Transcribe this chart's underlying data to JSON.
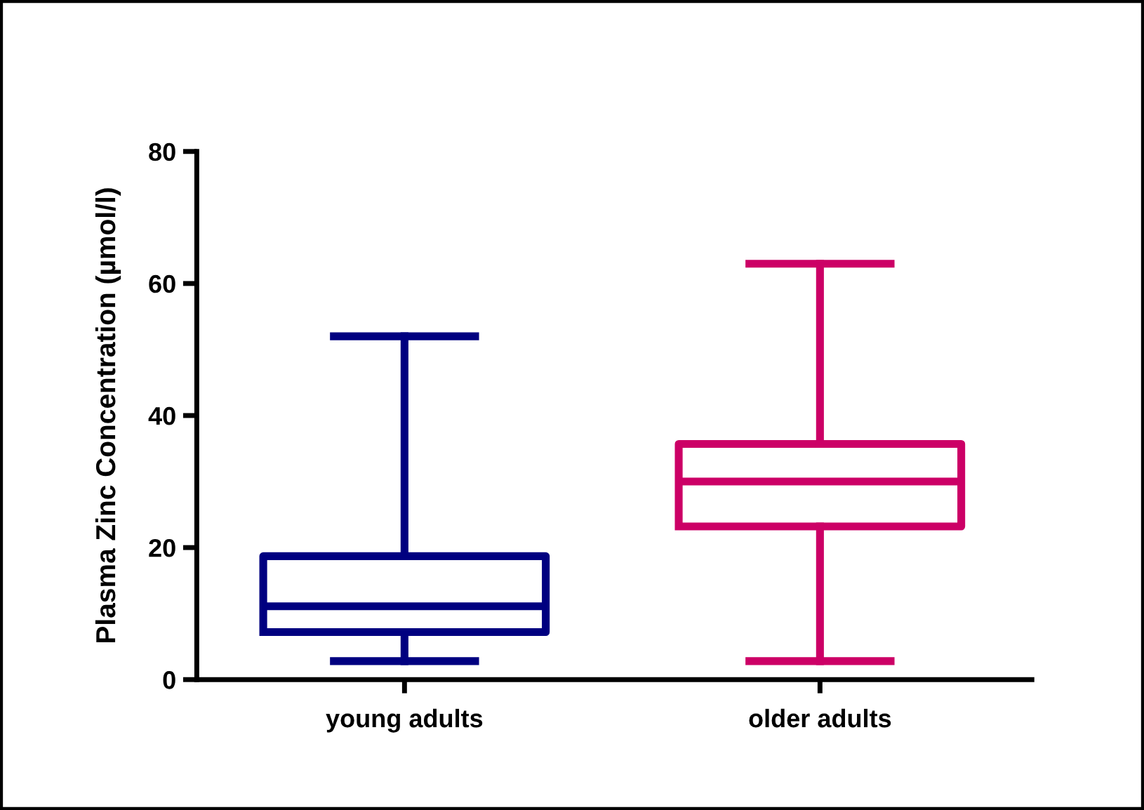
{
  "chart_data": {
    "type": "box",
    "ylabel": "Plasma Zinc Concentration (µmol/l)",
    "categories": [
      "young adults",
      "older adults"
    ],
    "colors": [
      "#000080",
      "#cc0066"
    ],
    "boxes": [
      {
        "low": 2.8,
        "q1": 7.2,
        "median": 11.1,
        "q3": 18.7,
        "high": 52
      },
      {
        "low": 2.8,
        "q1": 23.2,
        "median": 30,
        "q3": 35.7,
        "high": 63
      }
    ],
    "ylim": [
      0,
      80
    ],
    "yticks": [
      0,
      20,
      40,
      60,
      80
    ],
    "grid": false
  }
}
